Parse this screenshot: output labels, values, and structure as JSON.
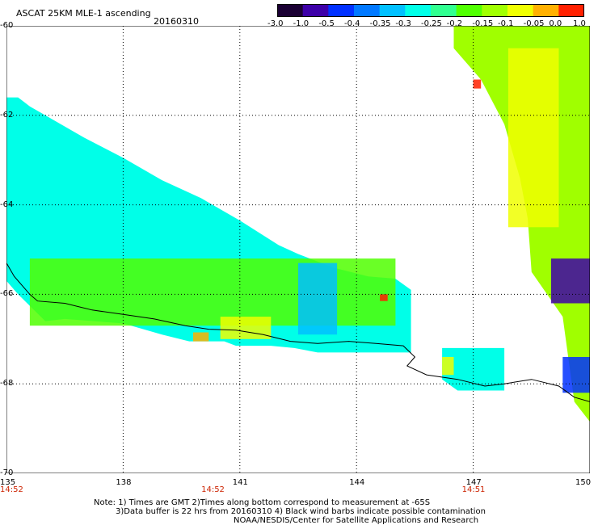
{
  "header": {
    "title": "ASCAT 25KM MLE-1 ascending",
    "date": "20160310"
  },
  "legend": {
    "labels": [
      "-3.0",
      "-1.0",
      "-0.5",
      "-0.4",
      "-0.35",
      "-0.3",
      "-0.25",
      "-0.2",
      "-0.15",
      "-0.1",
      "-0.05",
      "0.0",
      "1.0"
    ],
    "colors": [
      "#1a0033",
      "#3d00a8",
      "#0030ff",
      "#0078ff",
      "#00c0ff",
      "#00ffe8",
      "#30ff90",
      "#50ff00",
      "#a0ff00",
      "#f0ff00",
      "#ffb000",
      "#ff2000"
    ]
  },
  "axes": {
    "lon_labels": [
      "135",
      "138",
      "141",
      "144",
      "147",
      "150"
    ],
    "lat_labels": [
      "-60",
      "-62",
      "-64",
      "-66",
      "-68",
      "-70"
    ],
    "time_labels": [
      {
        "text": "14:52",
        "lon": 135
      },
      {
        "text": "14:52",
        "lon": 140.3
      },
      {
        "text": "14:51",
        "lon": 147
      }
    ]
  },
  "footer": {
    "line1": "Note: 1) Times are GMT 2)Times along bottom correspond to measurement at -65S",
    "line2": "3)Data buffer is 22 hrs from 20160310 4) Black wind barbs indicate possible contamination",
    "line3": "NOAA/NESDIS/Center for Satellite Applications and Research"
  },
  "map_data": {
    "lon_range": [
      135,
      150
    ],
    "lat_range": [
      -70,
      -60
    ],
    "grid_lon": [
      138,
      141,
      144,
      147
    ],
    "grid_lat": [
      -62,
      -64,
      -66,
      -68
    ],
    "coastline": [
      [
        135.0,
        -65.3
      ],
      [
        135.2,
        -65.6
      ],
      [
        135.6,
        -66.0
      ],
      [
        135.8,
        -66.15
      ],
      [
        136.5,
        -66.2
      ],
      [
        137.2,
        -66.35
      ],
      [
        138.0,
        -66.45
      ],
      [
        138.8,
        -66.55
      ],
      [
        139.6,
        -66.7
      ],
      [
        140.2,
        -66.78
      ],
      [
        140.9,
        -66.8
      ],
      [
        141.6,
        -66.9
      ],
      [
        142.3,
        -67.05
      ],
      [
        143.0,
        -67.1
      ],
      [
        143.8,
        -67.05
      ],
      [
        144.5,
        -67.1
      ],
      [
        145.2,
        -67.15
      ],
      [
        145.5,
        -67.4
      ],
      [
        145.3,
        -67.6
      ],
      [
        145.8,
        -67.8
      ],
      [
        146.6,
        -67.9
      ],
      [
        147.3,
        -68.05
      ],
      [
        147.8,
        -68.0
      ],
      [
        148.5,
        -67.9
      ],
      [
        149.2,
        -68.05
      ],
      [
        149.6,
        -68.3
      ],
      [
        150.0,
        -68.4
      ]
    ],
    "swaths": [
      {
        "name": "swath-west",
        "polygon": [
          [
            135.0,
            -61.6
          ],
          [
            135.3,
            -61.6
          ],
          [
            135.6,
            -61.8
          ],
          [
            136.0,
            -62.0
          ],
          [
            137.0,
            -62.5
          ],
          [
            138.0,
            -62.95
          ],
          [
            139.0,
            -63.45
          ],
          [
            140.0,
            -63.85
          ],
          [
            141.0,
            -64.35
          ],
          [
            142.0,
            -64.9
          ],
          [
            142.5,
            -65.1
          ],
          [
            143.4,
            -65.4
          ],
          [
            144.3,
            -65.6
          ],
          [
            145.0,
            -65.65
          ],
          [
            145.4,
            -65.9
          ],
          [
            145.4,
            -67.3
          ],
          [
            143.0,
            -67.3
          ],
          [
            142.4,
            -67.2
          ],
          [
            141.8,
            -67.15
          ],
          [
            140.9,
            -67.15
          ],
          [
            140.6,
            -67.05
          ],
          [
            139.7,
            -67.05
          ],
          [
            139.0,
            -66.9
          ],
          [
            138.0,
            -66.65
          ],
          [
            136.5,
            -66.55
          ],
          [
            136.0,
            -66.6
          ],
          [
            135.3,
            -66.0
          ],
          [
            135.0,
            -65.7
          ]
        ],
        "value": -0.28
      },
      {
        "name": "swath-mid",
        "polygon": [
          [
            146.2,
            -67.2
          ],
          [
            147.8,
            -67.2
          ],
          [
            147.8,
            -68.15
          ],
          [
            146.6,
            -68.15
          ],
          [
            146.2,
            -67.9
          ]
        ],
        "value": -0.27
      },
      {
        "name": "swath-east",
        "polygon": [
          [
            146.5,
            -60.0
          ],
          [
            150.0,
            -60.0
          ],
          [
            150.0,
            -68.85
          ],
          [
            149.6,
            -68.4
          ],
          [
            149.3,
            -66.5
          ],
          [
            148.5,
            -65.5
          ],
          [
            148.4,
            -64.3
          ],
          [
            148.2,
            -63.4
          ],
          [
            147.8,
            -62.2
          ],
          [
            147.2,
            -61.2
          ],
          [
            146.5,
            -60.5
          ]
        ],
        "value": -0.15
      }
    ],
    "patches": [
      {
        "lon": [
          135.6,
          145.0
        ],
        "lat": [
          -66.7,
          -65.2
        ],
        "value": -0.18
      },
      {
        "lon": [
          140.5,
          141.8
        ],
        "lat": [
          -67.0,
          -66.5
        ],
        "value": -0.1
      },
      {
        "lon": [
          139.8,
          140.2
        ],
        "lat": [
          -67.05,
          -66.85
        ],
        "value": -0.03
      },
      {
        "lon": [
          142.5,
          143.5
        ],
        "lat": [
          -66.9,
          -65.3
        ],
        "value": -0.34
      },
      {
        "lon": [
          147.9,
          149.2
        ],
        "lat": [
          -64.5,
          -60.5
        ],
        "value": -0.08
      },
      {
        "lon": [
          149.0,
          150.0
        ],
        "lat": [
          -66.2,
          -65.2
        ],
        "value": -0.55
      },
      {
        "lon": [
          149.3,
          150.0
        ],
        "lat": [
          -68.2,
          -67.4
        ],
        "value": -0.42
      },
      {
        "lon": [
          146.2,
          146.5
        ],
        "lat": [
          -67.8,
          -67.4
        ],
        "value": -0.1
      },
      {
        "lon": [
          147.0,
          147.2
        ],
        "lat": [
          -61.4,
          -61.2
        ],
        "value": 0.0
      },
      {
        "lon": [
          144.6,
          144.8
        ],
        "lat": [
          -66.15,
          -66.0
        ],
        "value": 0.3
      }
    ]
  }
}
